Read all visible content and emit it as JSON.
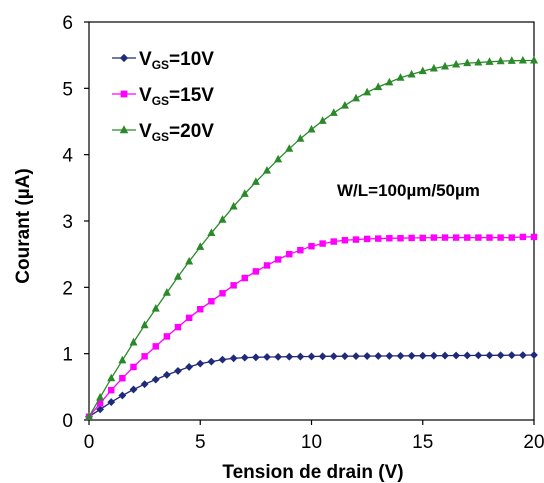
{
  "chart_data": {
    "type": "line",
    "title": "",
    "xlabel": "Tension de drain (V)",
    "ylabel": "Courant (µA)",
    "xlim": [
      0,
      20
    ],
    "ylim": [
      0,
      6
    ],
    "xticks": [
      "0",
      "5",
      "10",
      "15",
      "20"
    ],
    "yticks": [
      "0",
      "1",
      "2",
      "3",
      "4",
      "5",
      "6"
    ],
    "grid": false,
    "legend_position": "top-left",
    "annotation": "W/L=100µm/50µm",
    "x": [
      0,
      0.5,
      1,
      1.5,
      2,
      2.5,
      3,
      3.5,
      4,
      4.5,
      5,
      5.5,
      6,
      6.5,
      7,
      7.5,
      8,
      8.5,
      9,
      9.5,
      10,
      10.5,
      11,
      11.5,
      12,
      12.5,
      13,
      13.5,
      14,
      14.5,
      15,
      15.5,
      16,
      16.5,
      17,
      17.5,
      18,
      18.5,
      19,
      19.5,
      20
    ],
    "series": [
      {
        "name_main": "V",
        "name_sub": "GS",
        "name_tail": "=10V",
        "color": "#1f2a7a",
        "marker": "diamond",
        "values": [
          0.05,
          0.16,
          0.27,
          0.37,
          0.46,
          0.54,
          0.61,
          0.68,
          0.74,
          0.8,
          0.85,
          0.88,
          0.91,
          0.93,
          0.94,
          0.945,
          0.95,
          0.952,
          0.954,
          0.956,
          0.958,
          0.96,
          0.961,
          0.962,
          0.963,
          0.964,
          0.965,
          0.966,
          0.967,
          0.968,
          0.969,
          0.97,
          0.971,
          0.972,
          0.973,
          0.974,
          0.975,
          0.976,
          0.977,
          0.978,
          0.98
        ]
      },
      {
        "name_main": "V",
        "name_sub": "GS",
        "name_tail": "=15V",
        "color": "#ff00ff",
        "marker": "square",
        "values": [
          0.05,
          0.25,
          0.45,
          0.63,
          0.8,
          0.96,
          1.11,
          1.26,
          1.4,
          1.54,
          1.67,
          1.79,
          1.91,
          2.03,
          2.14,
          2.24,
          2.33,
          2.42,
          2.5,
          2.56,
          2.62,
          2.66,
          2.69,
          2.71,
          2.72,
          2.73,
          2.735,
          2.74,
          2.74,
          2.745,
          2.745,
          2.75,
          2.75,
          2.75,
          2.75,
          2.75,
          2.75,
          2.75,
          2.75,
          2.76,
          2.76
        ]
      },
      {
        "name_main": "V",
        "name_sub": "GS",
        "name_tail": "=20V",
        "color": "#2a8a2a",
        "marker": "triangle",
        "values": [
          0.05,
          0.34,
          0.63,
          0.9,
          1.17,
          1.43,
          1.68,
          1.92,
          2.16,
          2.39,
          2.61,
          2.82,
          3.02,
          3.22,
          3.41,
          3.59,
          3.76,
          3.93,
          4.09,
          4.24,
          4.38,
          4.51,
          4.63,
          4.74,
          4.85,
          4.94,
          5.02,
          5.09,
          5.16,
          5.21,
          5.26,
          5.3,
          5.33,
          5.36,
          5.38,
          5.39,
          5.4,
          5.41,
          5.415,
          5.42,
          5.42
        ]
      }
    ]
  }
}
